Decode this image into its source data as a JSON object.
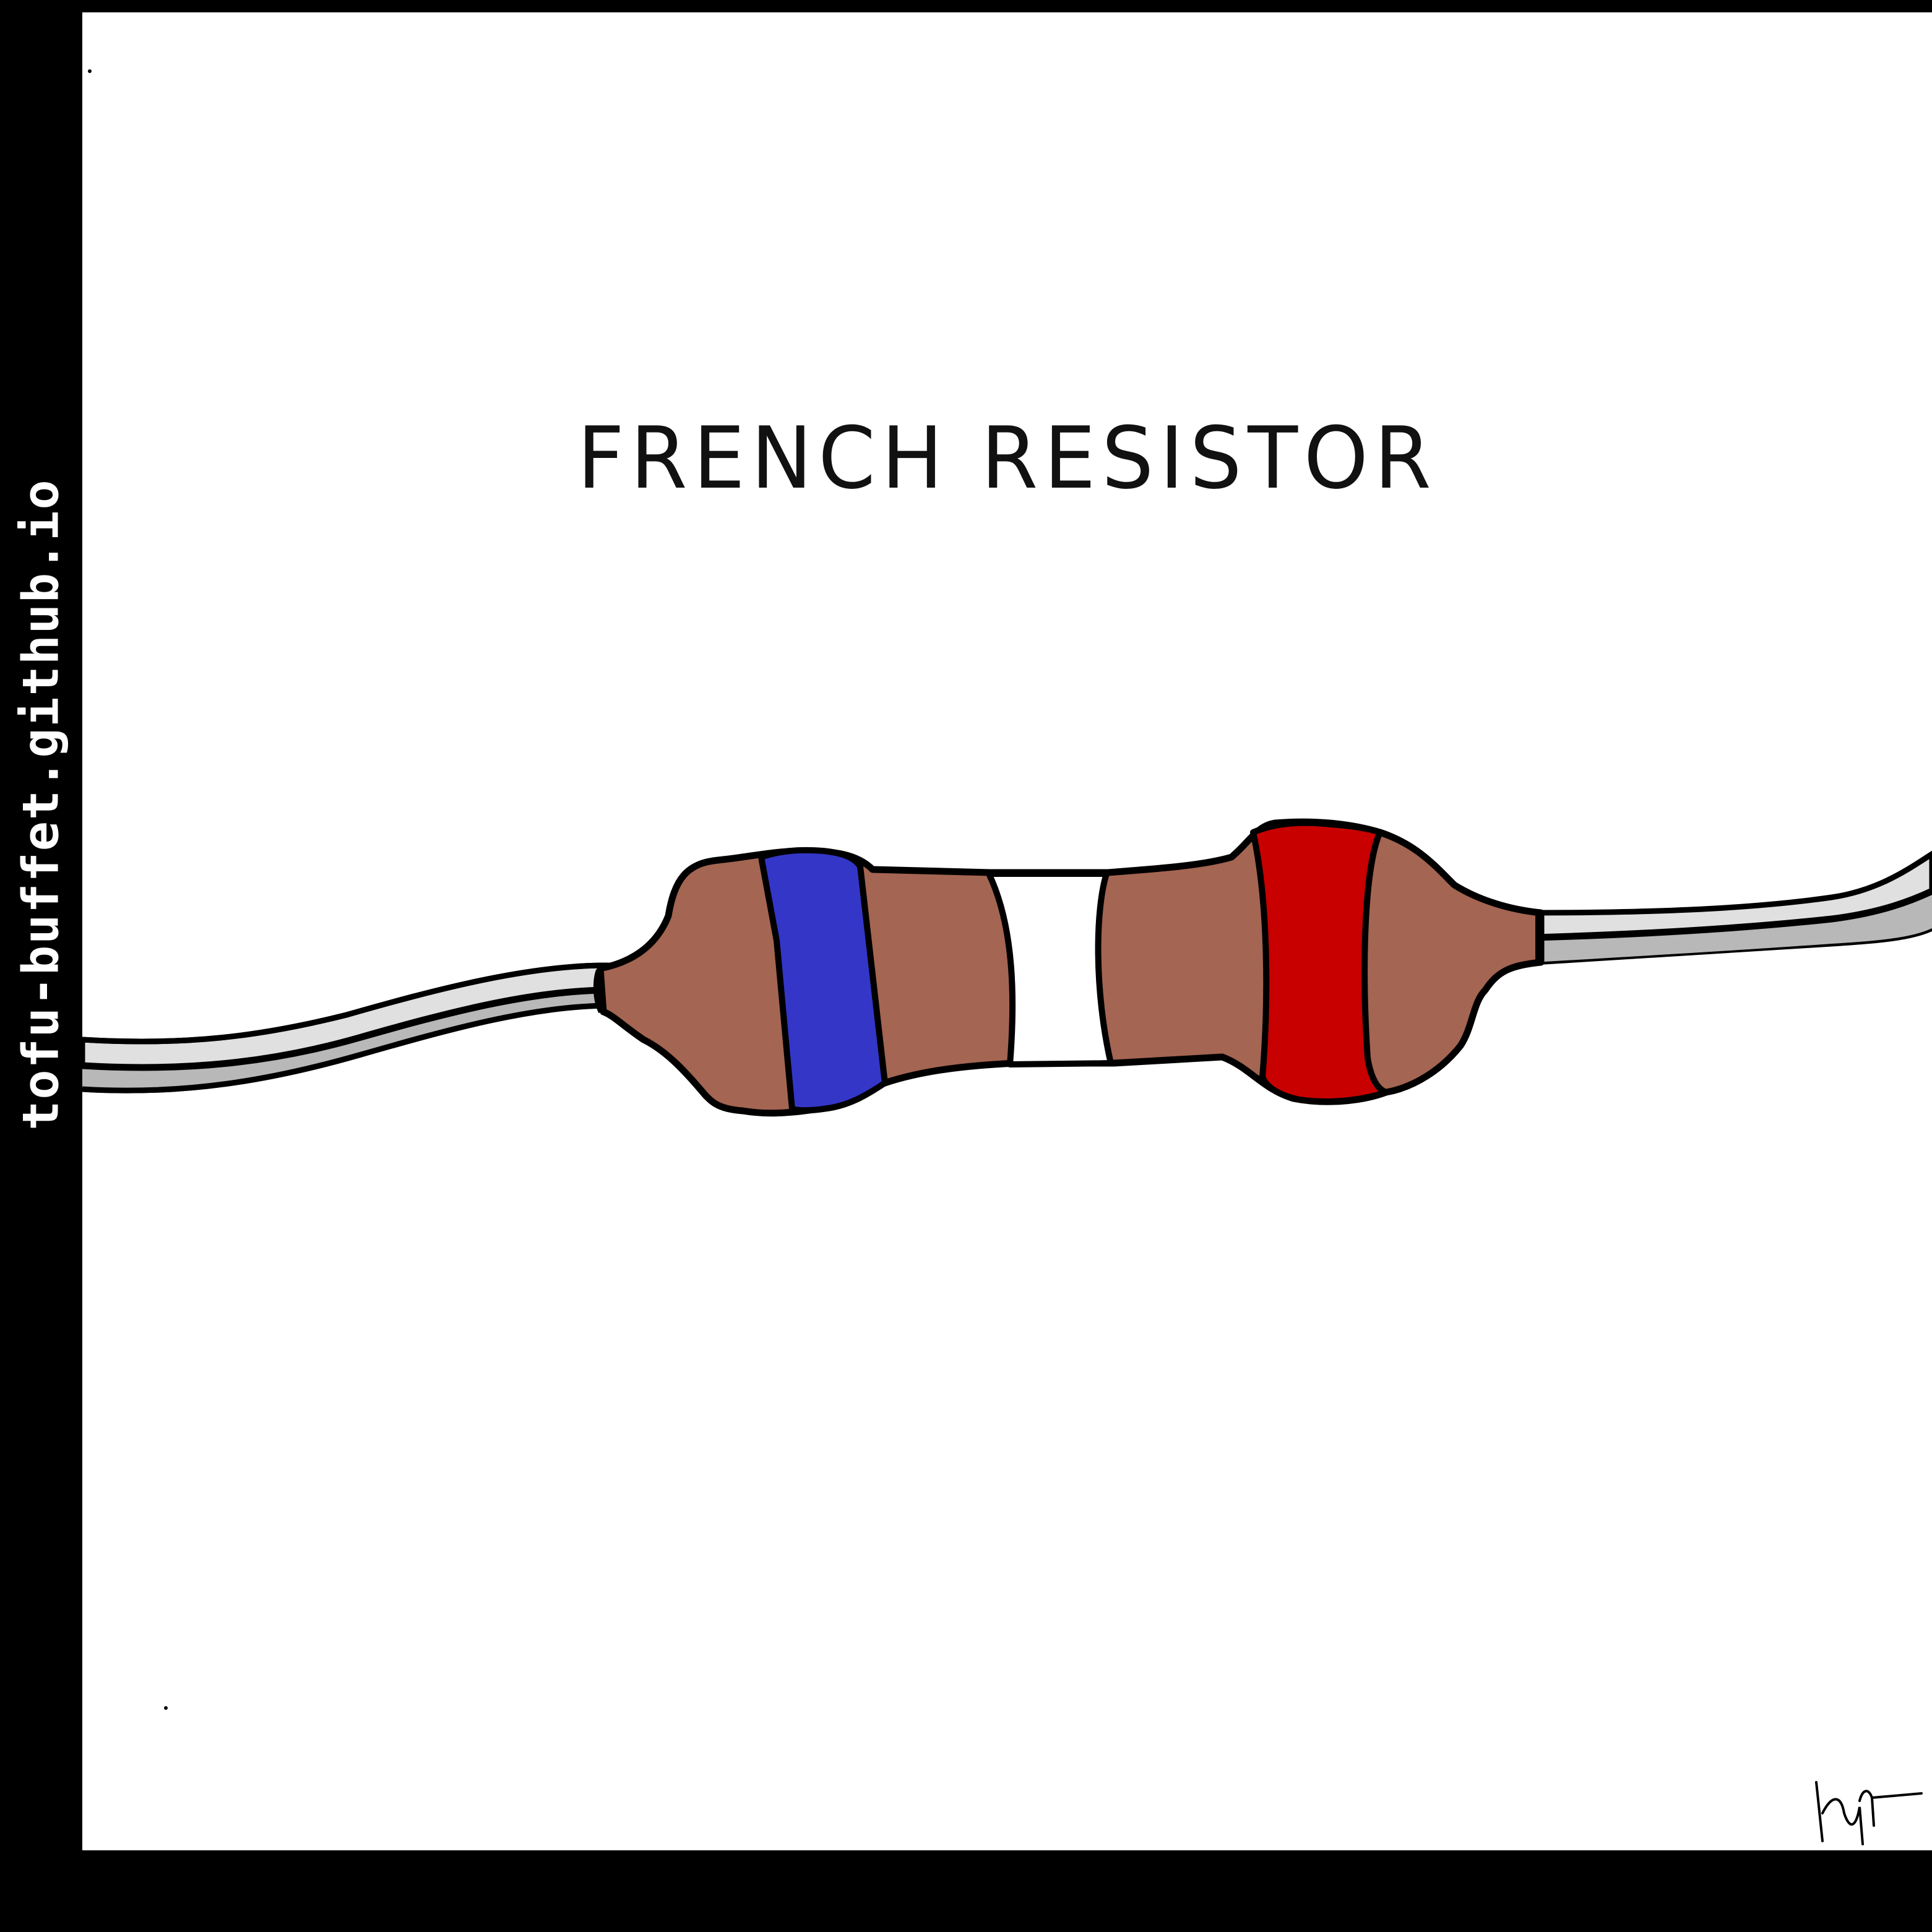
{
  "watermark": {
    "text": "tofu-buffet.github.io"
  },
  "comic": {
    "title": "FRENCH RESISTOR",
    "signature_note": "artist signature"
  },
  "colors": {
    "border": "#000000",
    "background": "#ffffff",
    "resistor_body": "#a46552",
    "band_blue": "#3436c8",
    "band_white": "#ffffff",
    "band_red": "#c80000",
    "lead_light": "#e0e0e0",
    "lead_dark": "#b8b8b8",
    "outline": "#000000"
  },
  "icons": [
    "resistor-icon",
    "wire-lead-icon",
    "signature-icon"
  ]
}
